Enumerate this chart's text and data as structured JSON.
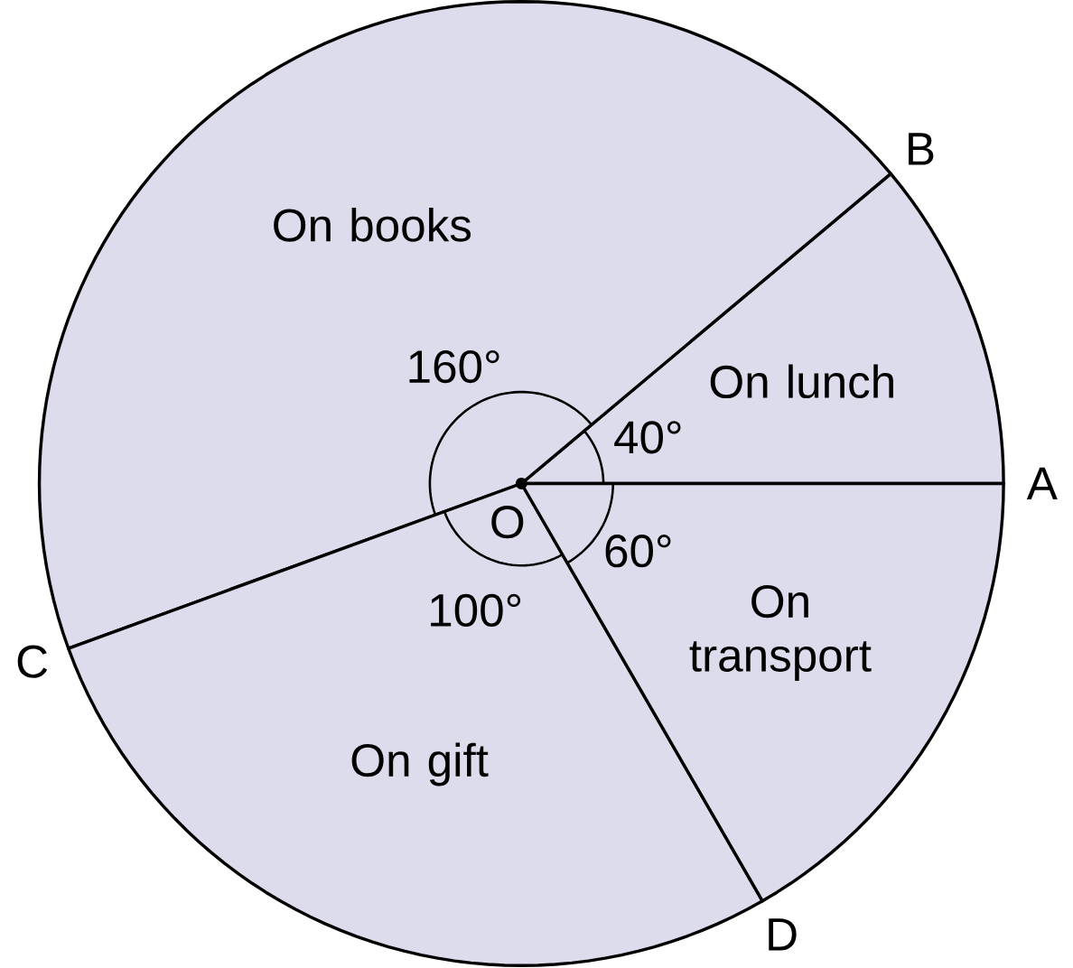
{
  "chart_data": {
    "type": "pie",
    "categories": [
      "On lunch",
      "On books",
      "On gift",
      "On transport"
    ],
    "values": [
      40,
      160,
      100,
      60
    ],
    "value_labels": [
      "40°",
      "160°",
      "100°",
      "60°"
    ],
    "colors": [
      "#dcdcec",
      "#dcdcec",
      "#dcdcec",
      "#dcdcec"
    ],
    "annotations": [
      "A",
      "B",
      "C",
      "D",
      "O"
    ]
  }
}
